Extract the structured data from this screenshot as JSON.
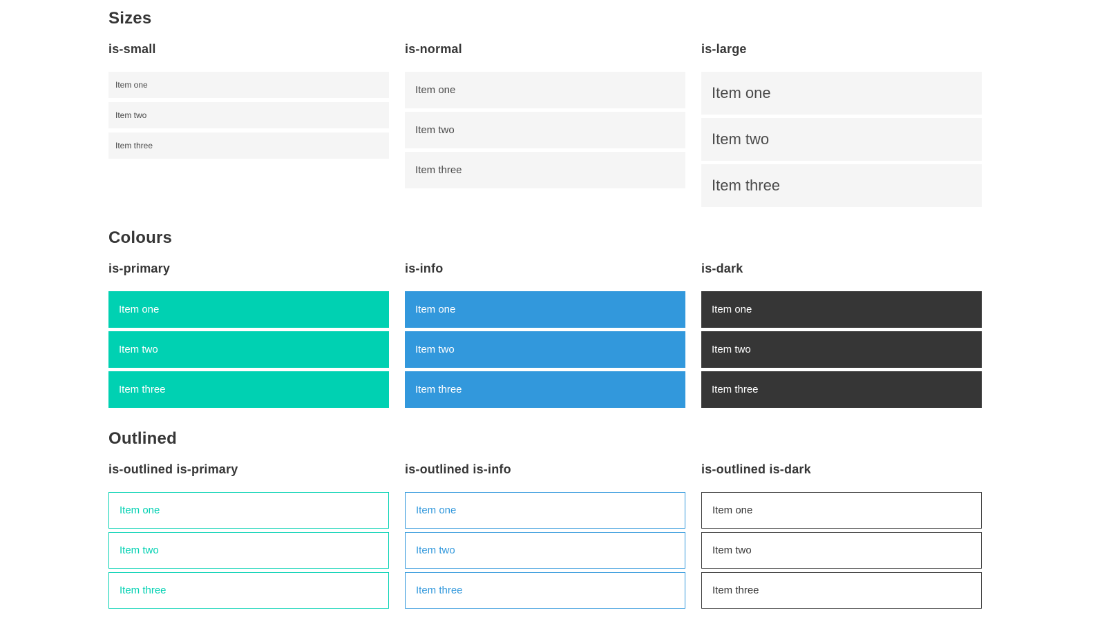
{
  "colors": {
    "primary": "#00d1b2",
    "info": "#3298dc",
    "dark": "#363636",
    "item_background_light": "#f5f5f5",
    "item_text": "#4a4a4a",
    "heading_text": "#363636",
    "item_text_on_color": "#ffffff",
    "page_background": "#ffffff"
  },
  "sections": [
    {
      "title": "Sizes",
      "groups": [
        {
          "label": "is-small",
          "items": [
            "Item one",
            "Item two",
            "Item three"
          ]
        },
        {
          "label": "is-normal",
          "items": [
            "Item one",
            "Item two",
            "Item three"
          ]
        },
        {
          "label": "is-large",
          "items": [
            "Item one",
            "Item two",
            "Item three"
          ]
        }
      ]
    },
    {
      "title": "Colours",
      "groups": [
        {
          "label": "is-primary",
          "items": [
            "Item one",
            "Item two",
            "Item three"
          ]
        },
        {
          "label": "is-info",
          "items": [
            "Item one",
            "Item two",
            "Item three"
          ]
        },
        {
          "label": "is-dark",
          "items": [
            "Item one",
            "Item two",
            "Item three"
          ]
        }
      ]
    },
    {
      "title": "Outlined",
      "groups": [
        {
          "label": "is-outlined is-primary",
          "items": [
            "Item one",
            "Item two",
            "Item three"
          ]
        },
        {
          "label": "is-outlined is-info",
          "items": [
            "Item one",
            "Item two",
            "Item three"
          ]
        },
        {
          "label": "is-outlined is-dark",
          "items": [
            "Item one",
            "Item two",
            "Item three"
          ]
        }
      ]
    }
  ]
}
